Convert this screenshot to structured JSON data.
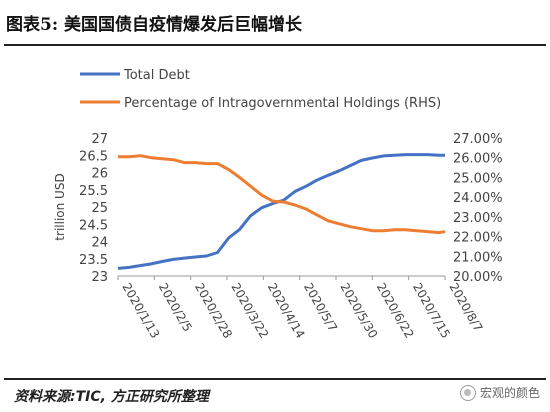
{
  "figure": {
    "title": "图表5:  美国国债自疫情爆发后巨幅增长",
    "source": "资料来源:TIC, 方正研究所整理",
    "watermark": "宏观的颜色",
    "watermark_icon": "wechat-icon"
  },
  "colors": {
    "debt": "#4472C4",
    "pct": "#ED7D31",
    "text": "#444444"
  },
  "chart_data": {
    "type": "line",
    "title": "",
    "xlabel": "",
    "ylabel": "trillion USD",
    "y2label": "",
    "legend_position": "top-left",
    "grid": false,
    "x": [
      "2020/1/13",
      "2020/1/20",
      "2020/1/27",
      "2020/2/3",
      "2020/2/10",
      "2020/2/17",
      "2020/2/24",
      "2020/3/2",
      "2020/3/9",
      "2020/3/16",
      "2020/3/23",
      "2020/3/30",
      "2020/4/6",
      "2020/4/13",
      "2020/4/20",
      "2020/4/27",
      "2020/5/4",
      "2020/5/11",
      "2020/5/18",
      "2020/5/25",
      "2020/6/1",
      "2020/6/8",
      "2020/6/15",
      "2020/6/22",
      "2020/6/29",
      "2020/7/6",
      "2020/7/13",
      "2020/7/20",
      "2020/7/27",
      "2020/8/3",
      "2020/8/7"
    ],
    "x_tick_labels": [
      "2020/1/13",
      "2020/2/5",
      "2020/2/28",
      "2020/3/22",
      "2020/4/14",
      "2020/5/7",
      "2020/5/30",
      "2020/6/22",
      "2020/7/15",
      "2020/8/7"
    ],
    "x_tick_dates": [
      "2020/1/13",
      "2020/2/5",
      "2020/2/28",
      "2020/3/22",
      "2020/4/14",
      "2020/5/7",
      "2020/5/30",
      "2020/6/22",
      "2020/7/15",
      "2020/8/7"
    ],
    "ylim": [
      23,
      27
    ],
    "y_ticks": [
      "23",
      "23.5",
      "24",
      "24.5",
      "25",
      "25.5",
      "26",
      "26.5",
      "27"
    ],
    "y2lim": [
      20,
      27
    ],
    "y2_ticks": [
      "20.00%",
      "21.00%",
      "22.00%",
      "23.00%",
      "24.00%",
      "25.00%",
      "26.00%",
      "27.00%"
    ],
    "series": [
      {
        "name": "Total Debt",
        "axis": "left",
        "values": [
          23.22,
          23.25,
          23.3,
          23.35,
          23.42,
          23.48,
          23.52,
          23.55,
          23.58,
          23.68,
          24.1,
          24.35,
          24.75,
          24.98,
          25.1,
          25.2,
          25.45,
          25.6,
          25.78,
          25.92,
          26.05,
          26.2,
          26.35,
          26.42,
          26.48,
          26.5,
          26.52,
          26.52,
          26.52,
          26.5,
          26.5
        ]
      },
      {
        "name": "Percentage of Intragovernmental Holdings (RHS)",
        "axis": "right",
        "values": [
          26.05,
          26.05,
          26.1,
          26.0,
          25.95,
          25.9,
          25.75,
          25.75,
          25.7,
          25.7,
          25.4,
          25.0,
          24.55,
          24.1,
          23.8,
          23.75,
          23.6,
          23.4,
          23.1,
          22.8,
          22.65,
          22.5,
          22.4,
          22.3,
          22.3,
          22.35,
          22.35,
          22.3,
          22.25,
          22.2,
          22.25
        ]
      }
    ]
  }
}
